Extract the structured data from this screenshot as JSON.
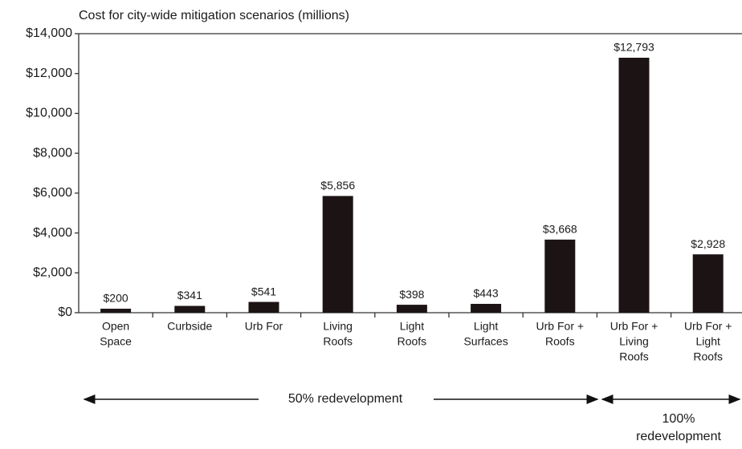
{
  "chart_data": {
    "type": "bar",
    "title": "Cost for city-wide mitigation scenarios (millions)",
    "categories": [
      [
        "Open",
        "Space"
      ],
      [
        "Curbside"
      ],
      [
        "Urb For"
      ],
      [
        "Living",
        "Roofs"
      ],
      [
        "Light",
        "Roofs"
      ],
      [
        "Light",
        "Surfaces"
      ],
      [
        "Urb For +",
        "Roofs"
      ],
      [
        "Urb For +",
        "Living",
        "Roofs"
      ],
      [
        "Urb For +",
        "Light",
        "Roofs"
      ]
    ],
    "values": [
      200,
      341,
      541,
      5856,
      398,
      443,
      3668,
      12793,
      2928
    ],
    "value_labels": [
      "$200",
      "$341",
      "$541",
      "$5,856",
      "$398",
      "$443",
      "$3,668",
      "$12,793",
      "$2,928"
    ],
    "color": "#1c1414",
    "ylim": [
      0,
      14000
    ],
    "yticks": [
      {
        "value": 0,
        "label": "$0"
      },
      {
        "value": 2000,
        "label": "$2,000"
      },
      {
        "value": 4000,
        "label": "$4,000"
      },
      {
        "value": 6000,
        "label": "$6,000"
      },
      {
        "value": 8000,
        "label": "$8,000"
      },
      {
        "value": 10000,
        "label": "$10,000"
      },
      {
        "value": 12000,
        "label": "$12,000"
      },
      {
        "value": 14000,
        "label": "$14,000"
      }
    ],
    "annotations": [
      [
        "50% redevelopment"
      ],
      [
        "100%",
        "redevelopment"
      ]
    ]
  }
}
